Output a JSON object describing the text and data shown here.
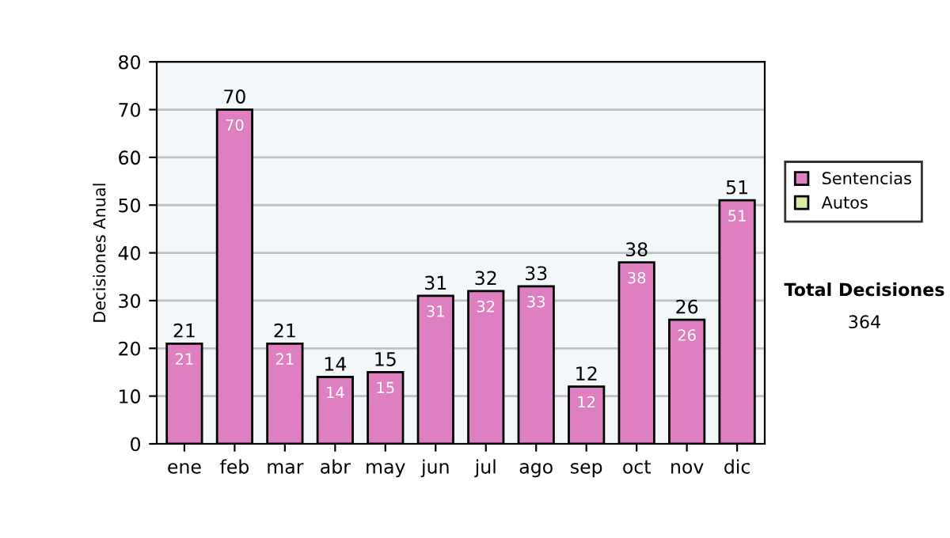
{
  "chart_data": {
    "type": "bar",
    "stacked": true,
    "ylabel": "Decisiones Anual",
    "categories": [
      "ene",
      "feb",
      "mar",
      "abr",
      "may",
      "jun",
      "jul",
      "ago",
      "sep",
      "oct",
      "nov",
      "dic"
    ],
    "series": [
      {
        "name": "Sentencias",
        "color": "#dd7fc0",
        "values": [
          21,
          70,
          21,
          14,
          15,
          31,
          32,
          33,
          12,
          38,
          26,
          51
        ]
      },
      {
        "name": "Autos",
        "color": "#d8eca0",
        "values": [
          null,
          null,
          null,
          null,
          null,
          null,
          null,
          null,
          null,
          null,
          null,
          null
        ]
      }
    ],
    "totals": [
      "21",
      "70",
      "21",
      "14",
      "15",
      "31",
      "32",
      "33",
      "12",
      "38",
      "26",
      "51"
    ],
    "data_labels": true,
    "ylim": [
      0,
      80
    ],
    "yticks": [
      0,
      10,
      20,
      30,
      40,
      50,
      60,
      70,
      80
    ],
    "grid": "y",
    "legend": "right",
    "annotations": [
      "Total Decisiones",
      "364"
    ]
  }
}
